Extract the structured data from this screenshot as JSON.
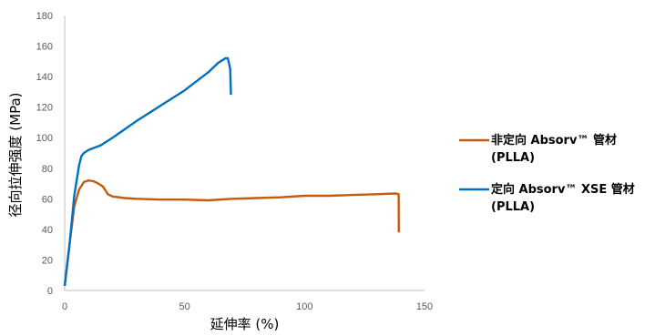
{
  "chart_data": {
    "type": "line",
    "xlabel": "延伸率 (%)",
    "ylabel": "径向拉伸强度 (MPa)",
    "xlim": [
      0,
      150
    ],
    "ylim": [
      0,
      180
    ],
    "xticks": [
      0,
      50,
      100,
      150
    ],
    "yticks": [
      0,
      20,
      40,
      60,
      80,
      100,
      120,
      140,
      160,
      180
    ],
    "grid": false,
    "legend_position": "right",
    "series": [
      {
        "name": "非定向 Absorv™ 管材 (PLLA)",
        "legend_line1": "非定向 Absorv™ 管材",
        "legend_line2": "(PLLA)",
        "color": "#C55A11",
        "x": [
          0,
          2,
          4,
          6,
          8,
          10,
          12,
          14,
          16,
          18,
          20,
          25,
          30,
          40,
          50,
          60,
          70,
          80,
          90,
          100,
          110,
          120,
          130,
          138,
          139.2,
          139.3
        ],
        "y": [
          3,
          30,
          55,
          66,
          71,
          72,
          71.5,
          70,
          68,
          63,
          61.5,
          60.5,
          60,
          59.5,
          59.5,
          59,
          60,
          60.5,
          61,
          62,
          62,
          62.5,
          63,
          63.5,
          63,
          38
        ]
      },
      {
        "name": "定向 Absorv™ XSE 管材 (PLLA)",
        "legend_line1": "定向 Absorv™ XSE 管材",
        "legend_line2": "(PLLA)",
        "color": "#0070C0",
        "x": [
          0,
          2,
          4,
          6,
          7,
          8,
          10,
          15,
          20,
          30,
          40,
          50,
          60,
          64,
          66,
          67,
          68,
          69,
          69.3
        ],
        "y": [
          3,
          30,
          62,
          82,
          88,
          90,
          92,
          95,
          100,
          111,
          121,
          131,
          143,
          149,
          151,
          152,
          152,
          145,
          128
        ]
      }
    ]
  }
}
